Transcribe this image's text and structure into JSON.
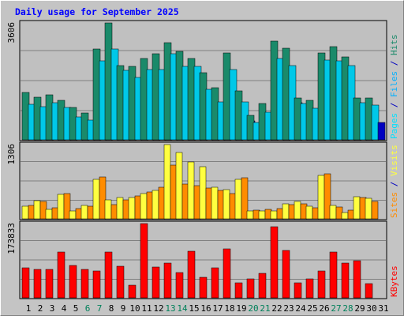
{
  "chart_data": {
    "type": "bar",
    "title": "Daily usage for September 2025",
    "x": [
      "1",
      "2",
      "3",
      "4",
      "5",
      "6",
      "7",
      "8",
      "9",
      "10",
      "11",
      "12",
      "13",
      "14",
      "15",
      "16",
      "17",
      "18",
      "19",
      "20",
      "21",
      "22",
      "23",
      "24",
      "25",
      "26",
      "27",
      "28",
      "29",
      "30",
      "31"
    ],
    "weekend_days": [
      "6",
      "7",
      "13",
      "14",
      "20",
      "21",
      "27",
      "28"
    ],
    "panels": [
      {
        "id": "top",
        "max_label": "3606",
        "ylim": [
          0,
          3606
        ],
        "ylabel_parts": [
          "Pages",
          " / ",
          "Files",
          " / ",
          "Hits"
        ],
        "ylabel_colors": [
          "#00e0ff",
          "#0000c0",
          "#00b0ff",
          "#0000c0",
          "#1a8a6a"
        ],
        "series": [
          {
            "name": "Hits",
            "color": "#1a8a6a",
            "values": [
              1460,
              1320,
              1390,
              1210,
              1000,
              820,
              2790,
              3606,
              2300,
              2260,
              2500,
              2650,
              3000,
              2730,
              2510,
              2080,
              1610,
              2680,
              1500,
              760,
              1120,
              3040,
              2830,
              1280,
              1230,
              2680,
              2870,
              2570,
              1290,
              1290,
              0
            ]
          },
          {
            "name": "Files",
            "color": "#00c8e8",
            "values": [
              1100,
              1030,
              1140,
              1000,
              700,
              620,
              2440,
              2810,
              2140,
              1930,
              2170,
              2170,
              2660,
              2260,
              2260,
              1570,
              1170,
              2160,
              1180,
              540,
              860,
              2510,
              2300,
              1120,
              980,
              2460,
              2430,
              2300,
              1140,
              1060,
              0
            ]
          },
          {
            "name": "Pages",
            "color": "#0000c0",
            "values": [
              550,
              520,
              560,
              500,
              360,
              310,
              1240,
              1410,
              1060,
              980,
              1080,
              1090,
              1330,
              1120,
              1130,
              780,
              580,
              1080,
              590,
              270,
              430,
              1250,
              1150,
              560,
              500,
              1230,
              1220,
              1150,
              570,
              530,
              0
            ]
          }
        ]
      },
      {
        "id": "mid",
        "max_label": "1306",
        "ylim": [
          0,
          1306
        ],
        "ylabel_parts": [
          "Sites",
          " / ",
          "Visits"
        ],
        "ylabel_colors": [
          "#ff8c00",
          "#0000c0",
          "#ffff40"
        ],
        "series": [
          {
            "name": "Visits",
            "color": "#ffff40",
            "values": [
              220,
              320,
              160,
              430,
              140,
              240,
              700,
              340,
              370,
              380,
              440,
              500,
              1306,
              1170,
              1000,
              920,
              550,
              520,
              700,
              140,
              140,
              140,
              260,
              300,
              220,
              760,
              240,
              110,
              390,
              360,
              0
            ]
          },
          {
            "name": "Sites",
            "color": "#ff8c00",
            "values": [
              240,
              300,
              200,
              450,
              180,
              220,
              740,
              250,
              340,
              400,
              470,
              550,
              950,
              610,
              580,
              540,
              500,
              450,
              720,
              150,
              160,
              180,
              250,
              260,
              200,
              790,
              210,
              150,
              370,
              300,
              0
            ]
          }
        ]
      },
      {
        "id": "bot",
        "max_label": "173833",
        "ylim": [
          0,
          173833
        ],
        "ylabel_parts": [
          "KBytes"
        ],
        "ylabel_colors": [
          "#ff0000"
        ],
        "series": [
          {
            "name": "KBytes",
            "color": "#ff0000",
            "values": [
              71000,
              66000,
              67000,
              107000,
              75000,
              67000,
              62000,
              107000,
              74000,
              30000,
              173833,
              72000,
              82000,
              59000,
              110000,
              48000,
              70000,
              115000,
              35000,
              44000,
              58000,
              167000,
              111000,
              36000,
              45000,
              62000,
              107000,
              82000,
              86000,
              33000,
              0
            ]
          }
        ]
      }
    ]
  }
}
